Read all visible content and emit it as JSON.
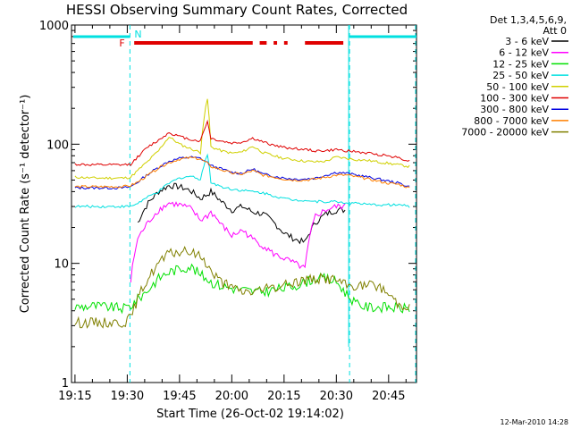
{
  "chart_data": {
    "type": "line",
    "title": "HESSI Observing Summary Count Rates, Corrected",
    "xlabel": "Start Time (26-Oct-02 19:14:02)",
    "ylabel": "Corrected Count Rate (s⁻¹ detector⁻¹)",
    "yscale": "log",
    "ylim": [
      1,
      1000
    ],
    "xlim": [
      "19:14",
      "20:53"
    ],
    "x_ticks": [
      "19:15",
      "19:30",
      "19:45",
      "20:00",
      "20:15",
      "20:30",
      "20:45"
    ],
    "y_ticks": [
      "1",
      "10",
      "100",
      "1000"
    ],
    "legend_header": [
      "Det 1,3,4,5,6,9,",
      "Att 0"
    ],
    "legend_position": "right",
    "footer": "12-Mar-2010 14:28",
    "flags": {
      "night_label": "N",
      "flare_label": "F"
    },
    "x": [
      "19:15",
      "19:20",
      "19:25",
      "19:29",
      "19:31",
      "19:33",
      "19:36",
      "19:39",
      "19:42",
      "19:45",
      "19:48",
      "19:51",
      "19:53",
      "19:54",
      "19:57",
      "20:00",
      "20:03",
      "20:06",
      "20:09",
      "20:12",
      "20:15",
      "20:18",
      "20:21",
      "20:24",
      "20:27",
      "20:30",
      "20:33",
      "20:36",
      "20:39",
      "20:42",
      "20:45",
      "20:48",
      "20:51"
    ],
    "series": [
      {
        "name": "3 - 6 keV",
        "color": "#000000",
        "values": [
          null,
          null,
          null,
          null,
          null,
          22,
          32,
          40,
          45,
          44,
          41,
          35,
          38,
          40,
          33,
          28,
          30,
          27,
          26,
          22,
          18,
          16,
          15,
          22,
          26,
          28,
          null,
          null,
          null,
          null,
          null,
          null,
          null
        ]
      },
      {
        "name": "6 - 12 keV",
        "color": "#ff00ff",
        "values": [
          null,
          null,
          null,
          null,
          7,
          16,
          22,
          28,
          32,
          31,
          29,
          23,
          25,
          27,
          21,
          17,
          19,
          16,
          14,
          12,
          11,
          10,
          9,
          25,
          28,
          30,
          null,
          null,
          null,
          null,
          null,
          null,
          null
        ]
      },
      {
        "name": "12 - 25 keV",
        "color": "#00e000",
        "values": [
          4.3,
          4.4,
          4.3,
          4.2,
          4.4,
          5,
          6,
          7.5,
          8.5,
          9,
          9.5,
          8,
          7.5,
          7,
          6.5,
          6.2,
          6,
          5.8,
          5.8,
          6,
          6.2,
          6.5,
          7,
          7.5,
          7.5,
          7,
          5.5,
          4.5,
          4.3,
          4.3,
          4.3,
          4.2,
          4.2
        ]
      },
      {
        "name": "25 - 50 keV",
        "color": "#00e0e0",
        "values": [
          30,
          30,
          30,
          30,
          30,
          32,
          36,
          40,
          47,
          52,
          54,
          51,
          82,
          48,
          44,
          42,
          41,
          40,
          39,
          37,
          35,
          34,
          34,
          33,
          33,
          33,
          32,
          32,
          31,
          31,
          31,
          31,
          30
        ]
      },
      {
        "name": "50 - 100 keV",
        "color": "#d0d000",
        "values": [
          53,
          52,
          52,
          52,
          53,
          60,
          72,
          88,
          115,
          100,
          92,
          85,
          240,
          95,
          88,
          84,
          86,
          96,
          85,
          80,
          76,
          74,
          72,
          71,
          72,
          78,
          76,
          74,
          73,
          71,
          69,
          67,
          65
        ]
      },
      {
        "name": "100 - 300 keV",
        "color": "#e00000",
        "values": [
          68,
          67,
          67,
          67,
          68,
          78,
          95,
          108,
          125,
          116,
          110,
          106,
          155,
          112,
          106,
          102,
          104,
          112,
          104,
          98,
          94,
          92,
          90,
          88,
          88,
          90,
          88,
          86,
          84,
          82,
          80,
          77,
          72
        ]
      },
      {
        "name": "300 - 800 keV",
        "color": "#0000e0",
        "values": [
          43,
          43,
          43,
          43,
          44,
          48,
          56,
          64,
          72,
          76,
          78,
          76,
          70,
          66,
          62,
          58,
          57,
          62,
          56,
          54,
          52,
          51,
          51,
          52,
          55,
          58,
          57,
          55,
          53,
          51,
          49,
          47,
          44
        ]
      },
      {
        "name": "800 - 7000 keV",
        "color": "#ff8000",
        "values": [
          44,
          44,
          44,
          44,
          45,
          48,
          55,
          63,
          70,
          75,
          77,
          75,
          69,
          65,
          61,
          57,
          56,
          60,
          55,
          53,
          51,
          50,
          50,
          51,
          53,
          55,
          55,
          53,
          51,
          49,
          47,
          46,
          43
        ]
      },
      {
        "name": "7000 - 20000 keV",
        "color": "#808000",
        "values": [
          3.2,
          3.2,
          3.2,
          3.2,
          3.5,
          5,
          7.5,
          10,
          12,
          12.5,
          12.5,
          11.5,
          10,
          8.5,
          7,
          6.2,
          5.8,
          5.8,
          6,
          6.3,
          6.5,
          7,
          7.3,
          7.5,
          7.5,
          7.3,
          6.5,
          6.5,
          6.5,
          6.5,
          5.5,
          4.5,
          4.5
        ]
      }
    ]
  }
}
